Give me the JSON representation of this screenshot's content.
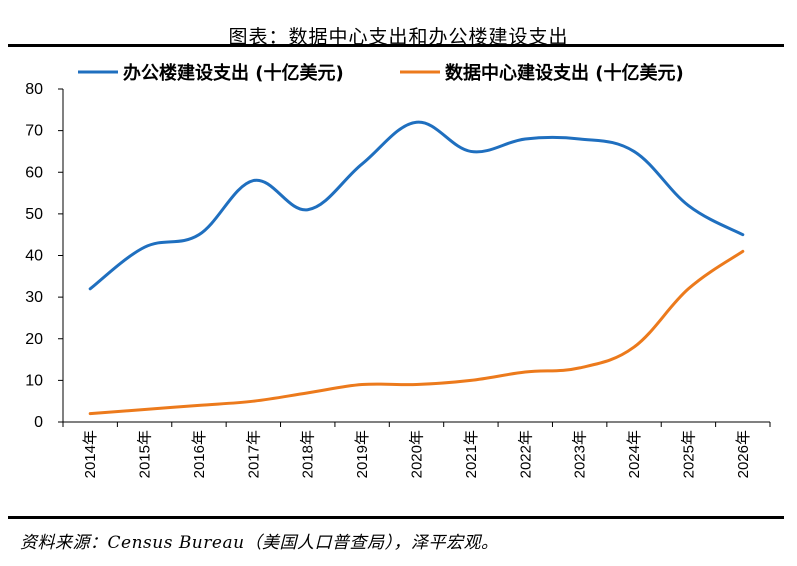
{
  "title": "图表：数据中心支出和办公楼建设支出",
  "source": "资料来源：Census Bureau（美国人口普查局），泽平宏观。",
  "chart_data": {
    "type": "line",
    "categories": [
      "2014年",
      "2015年",
      "2016年",
      "2017年",
      "2018年",
      "2019年",
      "2020年",
      "2021年",
      "2022年",
      "2023年",
      "2024年",
      "2025年",
      "2026年"
    ],
    "ylim": [
      0,
      80
    ],
    "yticks": [
      "0",
      "10",
      "20",
      "30",
      "40",
      "50",
      "60",
      "70",
      "80"
    ],
    "legend_position": "top",
    "grid": false,
    "series": [
      {
        "name": "办公楼建设支出 (十亿美元)",
        "color": "#1f6fbf",
        "values": [
          32,
          42,
          45,
          58,
          51,
          62,
          72,
          65,
          68,
          68,
          65,
          52,
          45
        ]
      },
      {
        "name": "数据中心建设支出 (十亿美元)",
        "color": "#ec7a1c",
        "values": [
          2,
          3,
          4,
          5,
          7,
          9,
          9,
          10,
          12,
          13,
          18,
          32,
          41
        ]
      }
    ]
  }
}
